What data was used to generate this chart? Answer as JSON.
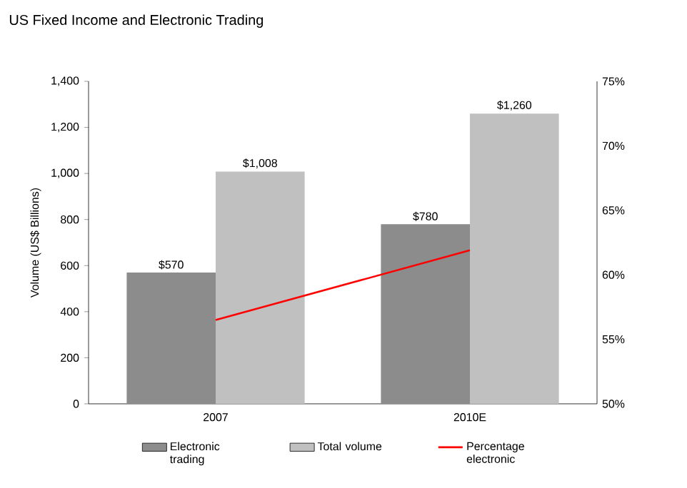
{
  "chart_data": {
    "type": "bar",
    "title": "US Fixed Income and Electronic Trading",
    "ylabel": "Volume (US$ Billions)",
    "categories": [
      "2007",
      "2010E"
    ],
    "series": [
      {
        "name": "Electronic trading",
        "color": "#8c8c8c",
        "values": [
          570,
          780
        ],
        "value_labels": [
          "$570",
          "$780"
        ]
      },
      {
        "name": "Total volume",
        "color": "#c0c0c0",
        "values": [
          1008,
          1260
        ],
        "value_labels": [
          "$1,008",
          "$1,260"
        ]
      },
      {
        "name": "Percentage electronic",
        "type": "line",
        "axis": "y2",
        "color": "#ff0000",
        "values": [
          56.5,
          61.9
        ]
      }
    ],
    "ylim": [
      0,
      1400
    ],
    "yticks": [
      0,
      200,
      400,
      600,
      800,
      {
        "value": 1000,
        "label": "1,000"
      },
      {
        "value": 1200,
        "label": "1,200"
      },
      {
        "value": 1400,
        "label": "1,400"
      }
    ],
    "y2lim": [
      50,
      75
    ],
    "y2ticks": [
      {
        "value": 50,
        "label": "50%"
      },
      {
        "value": 55,
        "label": "55%"
      },
      {
        "value": 60,
        "label": "60%"
      },
      {
        "value": 65,
        "label": "65%"
      },
      {
        "value": 70,
        "label": "70%"
      },
      {
        "value": 75,
        "label": "75%"
      }
    ],
    "legend": "bottom",
    "grid": false
  }
}
